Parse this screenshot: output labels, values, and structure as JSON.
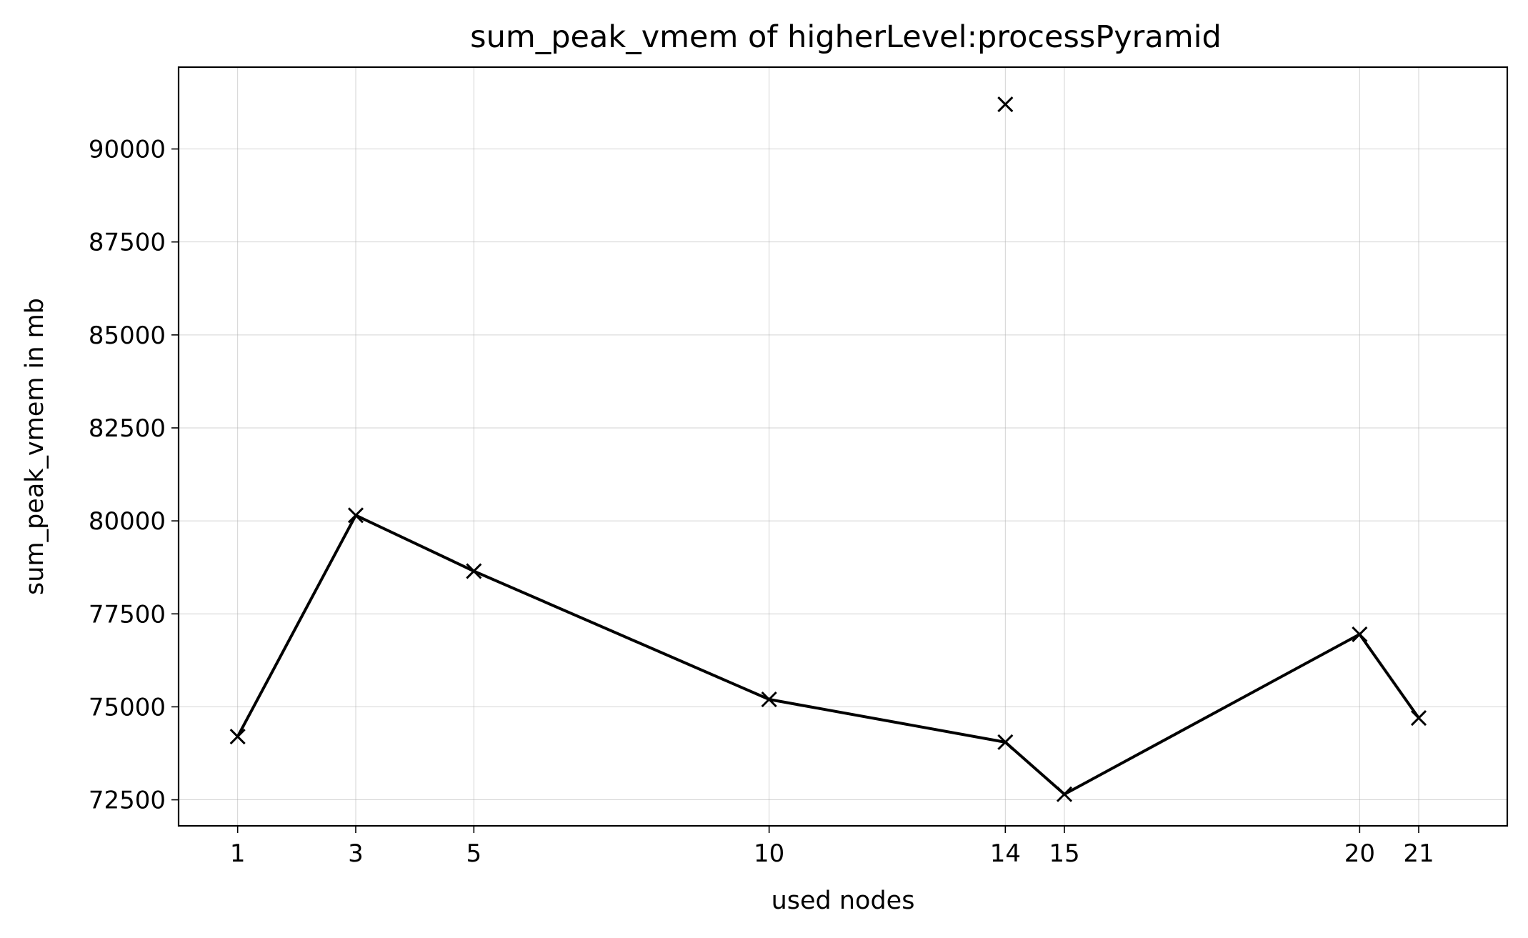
{
  "chart_data": {
    "type": "line",
    "title": "sum_peak_vmem of higherLevel:processPyramid",
    "xlabel": "used nodes",
    "ylabel": "sum_peak_vmem in mb",
    "xlim": [
      -0.0,
      22.5
    ],
    "ylim": [
      71800,
      92200
    ],
    "x_ticks": [
      1,
      3,
      5,
      10,
      14,
      15,
      20,
      21
    ],
    "y_ticks": [
      72500,
      75000,
      77500,
      80000,
      82500,
      85000,
      87500,
      90000
    ],
    "grid": true,
    "series": [
      {
        "points": [
          {
            "x": 1,
            "y": 74200
          },
          {
            "x": 3,
            "y": 80150
          },
          {
            "x": 5,
            "y": 78650
          },
          {
            "x": 10,
            "y": 75200
          },
          {
            "x": 14,
            "y": 74050
          },
          {
            "x": 15,
            "y": 72650
          },
          {
            "x": 20,
            "y": 76950
          },
          {
            "x": 21,
            "y": 74700
          }
        ],
        "color": "#000000",
        "marker": "x"
      },
      {
        "points": [
          {
            "x": 14,
            "y": 91200
          }
        ],
        "color": "#000000",
        "marker": "x",
        "line": false
      }
    ]
  }
}
